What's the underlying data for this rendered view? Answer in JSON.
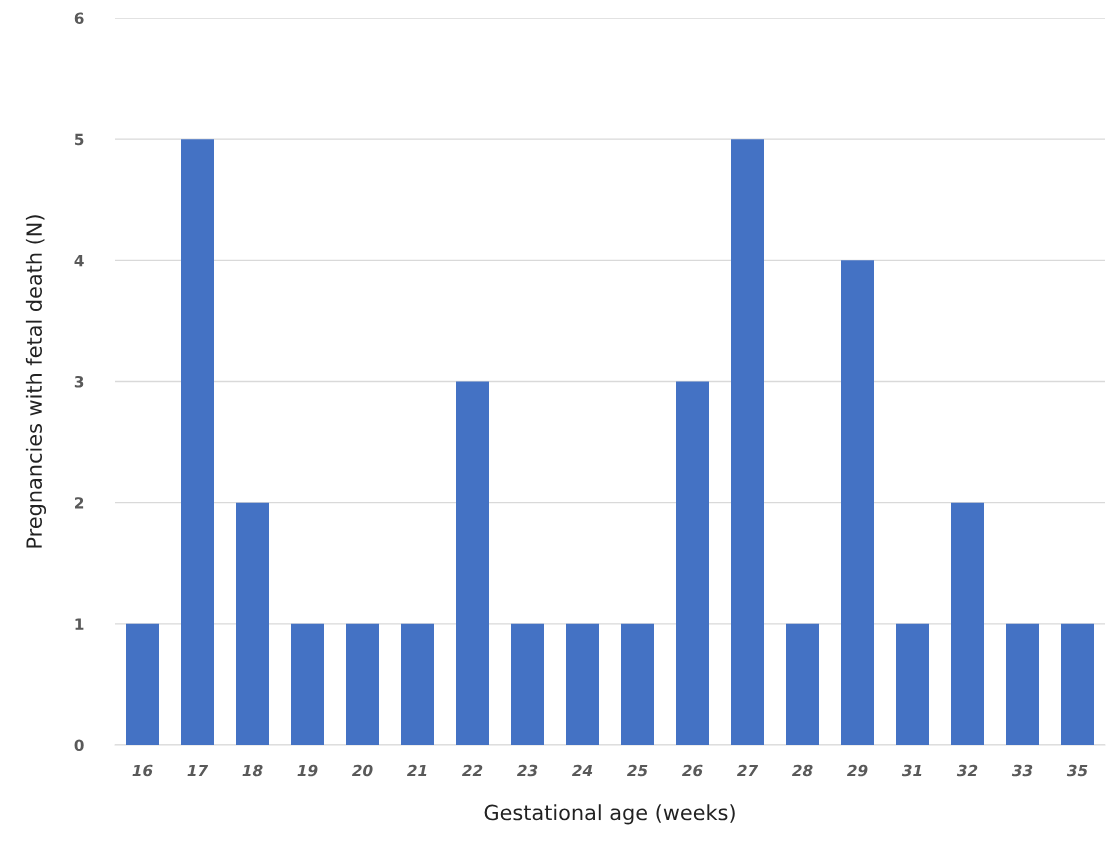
{
  "chart_data": {
    "type": "bar",
    "xlabel": "Gestational age (weeks)",
    "ylabel": "Pregnancies with fetal death (N)",
    "categories": [
      "16",
      "17",
      "18",
      "19",
      "20",
      "21",
      "22",
      "23",
      "24",
      "25",
      "26",
      "27",
      "28",
      "29",
      "31",
      "32",
      "33",
      "35"
    ],
    "values": [
      1,
      5,
      2,
      1,
      1,
      1,
      3,
      1,
      1,
      1,
      3,
      5,
      1,
      4,
      1,
      2,
      1,
      1
    ],
    "color": "#4472c4",
    "ylim": [
      0,
      6
    ],
    "yticks": [
      0,
      1,
      2,
      3,
      4,
      5,
      6
    ],
    "grid": "y",
    "legend": false
  }
}
